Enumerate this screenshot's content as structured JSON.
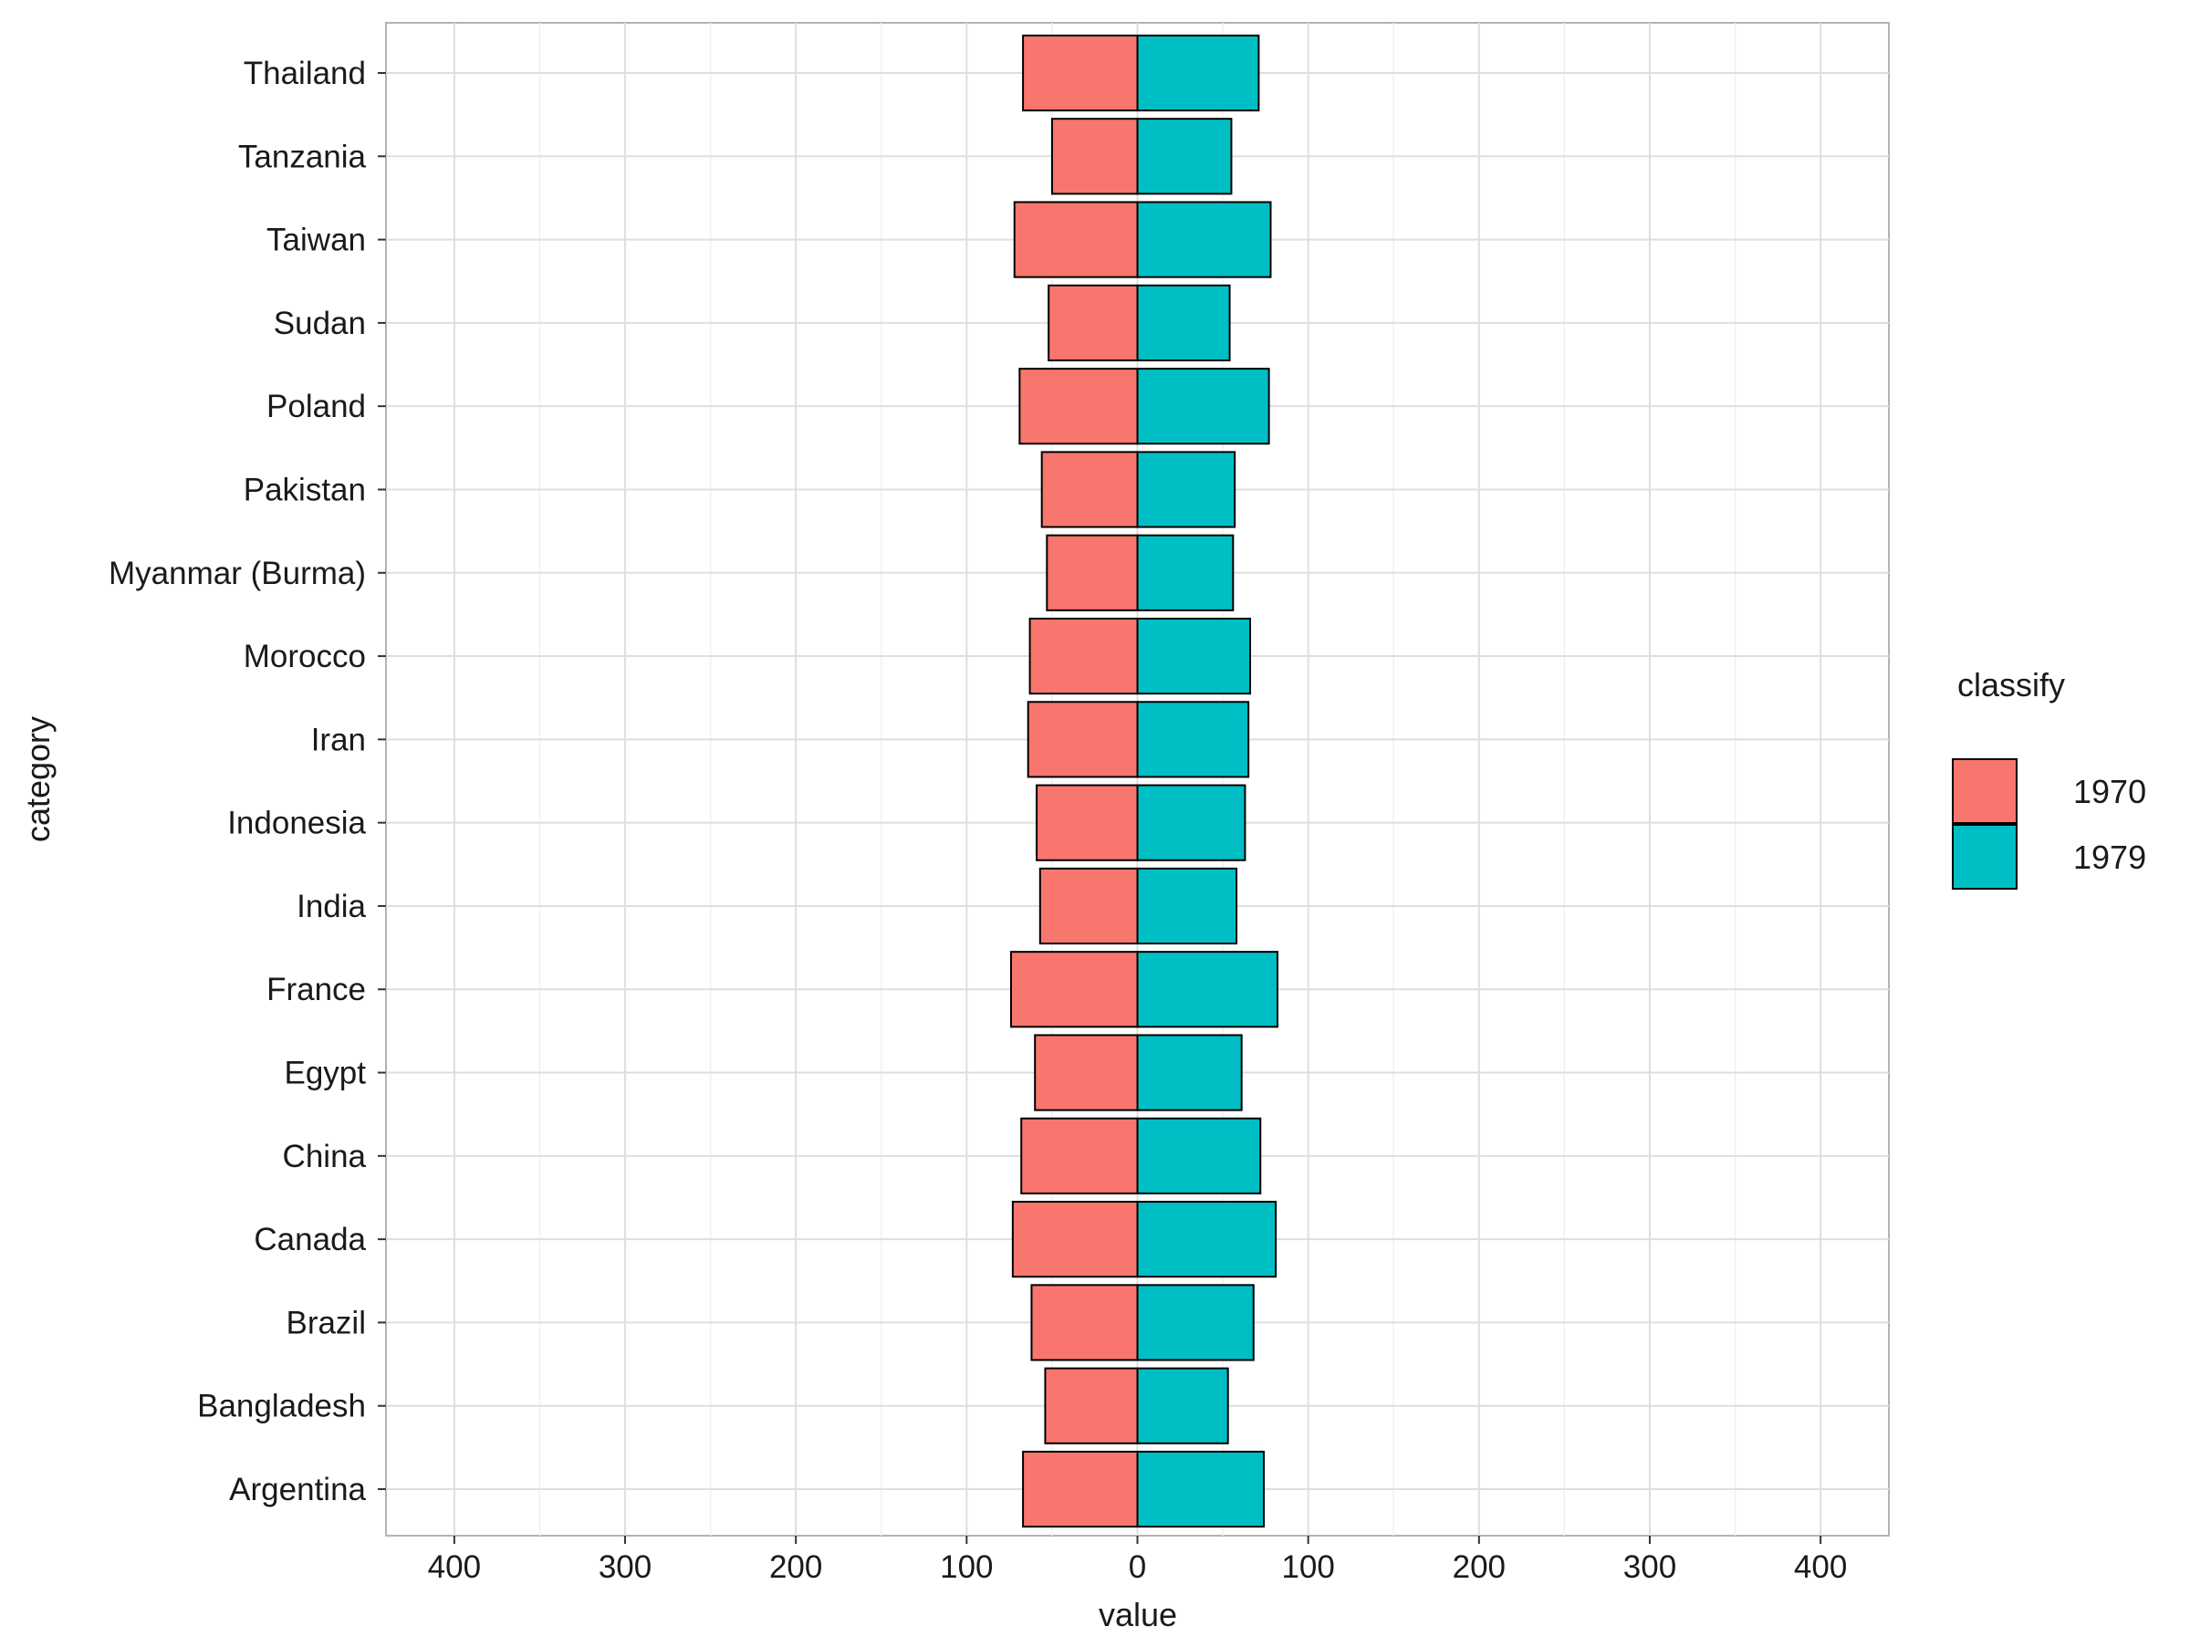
{
  "chart_data": {
    "type": "bar",
    "orientation": "horizontal",
    "layout": "diverging",
    "xlabel": "value",
    "ylabel": "category",
    "xlim": [
      -440,
      440
    ],
    "x_ticks": [
      -400,
      -300,
      -200,
      -100,
      0,
      100,
      200,
      300,
      400
    ],
    "x_tick_labels": [
      "400",
      "300",
      "200",
      "100",
      "0",
      "100",
      "200",
      "300",
      "400"
    ],
    "grid": true,
    "categories": [
      "Argentina",
      "Bangladesh",
      "Brazil",
      "Canada",
      "China",
      "Egypt",
      "France",
      "India",
      "Indonesia",
      "Iran",
      "Morocco",
      "Myanmar (Burma)",
      "Pakistan",
      "Poland",
      "Sudan",
      "Taiwan",
      "Tanzania",
      "Thailand"
    ],
    "series": [
      {
        "name": "1970",
        "color": "#F8766D",
        "values": [
          67,
          54,
          62,
          73,
          68,
          60,
          74,
          57,
          59,
          64,
          63,
          53,
          56,
          69,
          52,
          72,
          50,
          67
        ]
      },
      {
        "name": "1979",
        "color": "#00BFC4",
        "values": [
          74,
          53,
          68,
          81,
          72,
          61,
          82,
          58,
          63,
          65,
          66,
          56,
          57,
          77,
          54,
          78,
          55,
          71
        ]
      }
    ],
    "legend": {
      "title": "classify",
      "position": "right"
    }
  }
}
